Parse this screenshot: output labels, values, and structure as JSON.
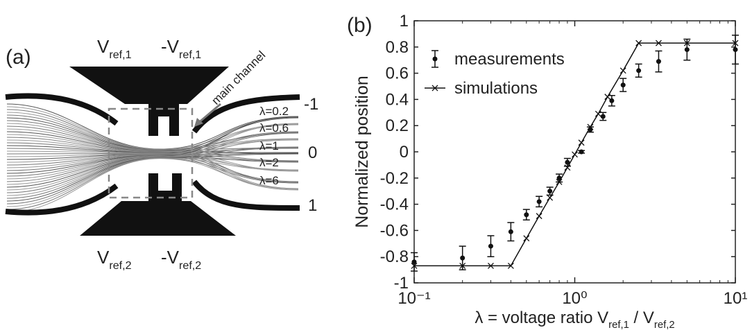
{
  "panel_a": {
    "label": "(a)",
    "top_left": {
      "main": "V",
      "sub": "ref,1"
    },
    "top_right": {
      "main": "-V",
      "sub": "ref,1"
    },
    "bottom_left": {
      "main": "V",
      "sub": "ref,2"
    },
    "bottom_right": {
      "main": "-V",
      "sub": "ref,2"
    },
    "arrow_label": "main channel",
    "curve_labels": [
      "λ=0.2",
      "λ=0.6",
      "λ=1",
      "λ=2",
      "λ=6"
    ],
    "position_labels": [
      "-1",
      "0",
      "1"
    ]
  },
  "chart_data": {
    "type": "scatter",
    "panel_label": "(b)",
    "ylabel": "Normalized position",
    "xlabel": {
      "parts": [
        "λ = voltage ratio V",
        "ref,1",
        " / V",
        "ref,2"
      ]
    },
    "log_x": true,
    "xlim": [
      0.1,
      10
    ],
    "xticks": [
      {
        "value": 0.1,
        "label": "10⁻¹"
      },
      {
        "value": 1,
        "label": "10⁰"
      },
      {
        "value": 10,
        "label": "10¹"
      }
    ],
    "ylim": [
      -1,
      1
    ],
    "yticks": [
      -1,
      -0.8,
      -0.6,
      -0.4,
      -0.2,
      0,
      0.2,
      0.4,
      0.6,
      0.8,
      1
    ],
    "legend": "upper left",
    "series": [
      {
        "name": "measurements",
        "color": "#111111",
        "marker": "dot-errorbar",
        "x": [
          0.1,
          0.2,
          0.3,
          0.4,
          0.5,
          0.6,
          0.7,
          0.8,
          0.9,
          1.1,
          1.25,
          1.5,
          1.7,
          2,
          2.5,
          3.33,
          5,
          10
        ],
        "values": [
          -0.84,
          -0.81,
          -0.72,
          -0.61,
          -0.48,
          -0.38,
          -0.3,
          -0.2,
          -0.08,
          0,
          0.17,
          0.27,
          0.39,
          0.51,
          0.62,
          0.69,
          0.78,
          0.78
        ],
        "errors": [
          0.07,
          0.09,
          0.08,
          0.07,
          0.04,
          0.04,
          0.03,
          0.03,
          0.03,
          0.01,
          0.02,
          0.03,
          0.04,
          0.05,
          0.05,
          0.08,
          0.08,
          0.11
        ]
      },
      {
        "name": "simulations",
        "color": "#111111",
        "marker": "x-line",
        "x": [
          0.1,
          0.2,
          0.3,
          0.4,
          0.5,
          0.6,
          0.7,
          0.8,
          0.9,
          1,
          1.1,
          1.25,
          1.4,
          1.6,
          2,
          2.5,
          3.33,
          5,
          10
        ],
        "values": [
          -0.87,
          -0.87,
          -0.87,
          -0.87,
          -0.66,
          -0.49,
          -0.35,
          -0.23,
          -0.12,
          -0.02,
          0.07,
          0.19,
          0.29,
          0.42,
          0.62,
          0.83,
          0.83,
          0.83,
          0.83
        ]
      }
    ]
  }
}
